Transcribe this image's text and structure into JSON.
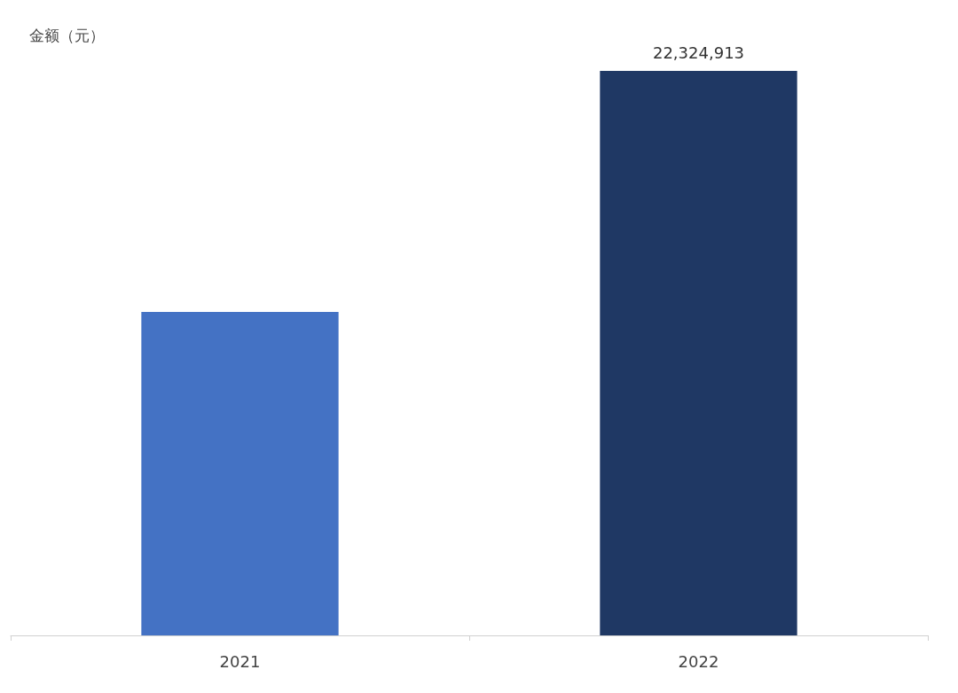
{
  "chart_data": {
    "type": "bar",
    "ylabel": "金额（元）",
    "categories": [
      "2021",
      "2022"
    ],
    "values": [
      12790000,
      22324913
    ],
    "colors": [
      "#4472c4",
      "#1f3864"
    ],
    "value_labels": [
      null,
      "22,324,913"
    ],
    "tick_labels": "x"
  }
}
